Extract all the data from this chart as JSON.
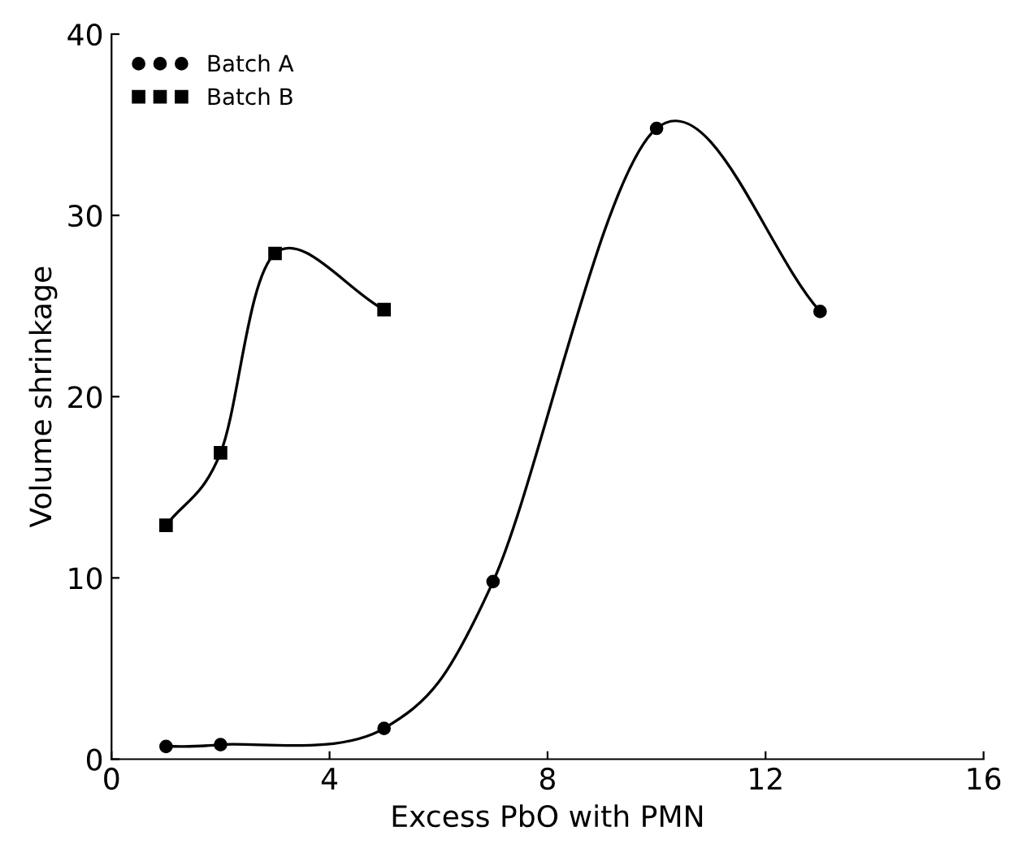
{
  "chart_data": {
    "type": "line",
    "xlabel": "Excess PbO with PMN",
    "ylabel": "Volume shrinkage",
    "series": [
      {
        "name": "Batch A",
        "color": "#000000",
        "marker": "circle",
        "x": [
          1,
          2,
          5,
          7,
          10,
          13
        ],
        "values": [
          0.7,
          0.8,
          1.7,
          9.8,
          34.8,
          24.7
        ]
      },
      {
        "name": "Batch B",
        "color": "#000000",
        "marker": "square",
        "x": [
          1,
          2,
          3,
          5
        ],
        "values": [
          12.9,
          16.9,
          27.9,
          24.8
        ]
      }
    ],
    "xlim": [
      0,
      16
    ],
    "xticks": [
      0,
      4,
      8,
      12,
      16
    ],
    "ylim": [
      0,
      40
    ],
    "yticks": [
      0,
      10,
      20,
      30,
      40
    ],
    "grid": false,
    "legend": "top left",
    "line_style": "solid"
  }
}
